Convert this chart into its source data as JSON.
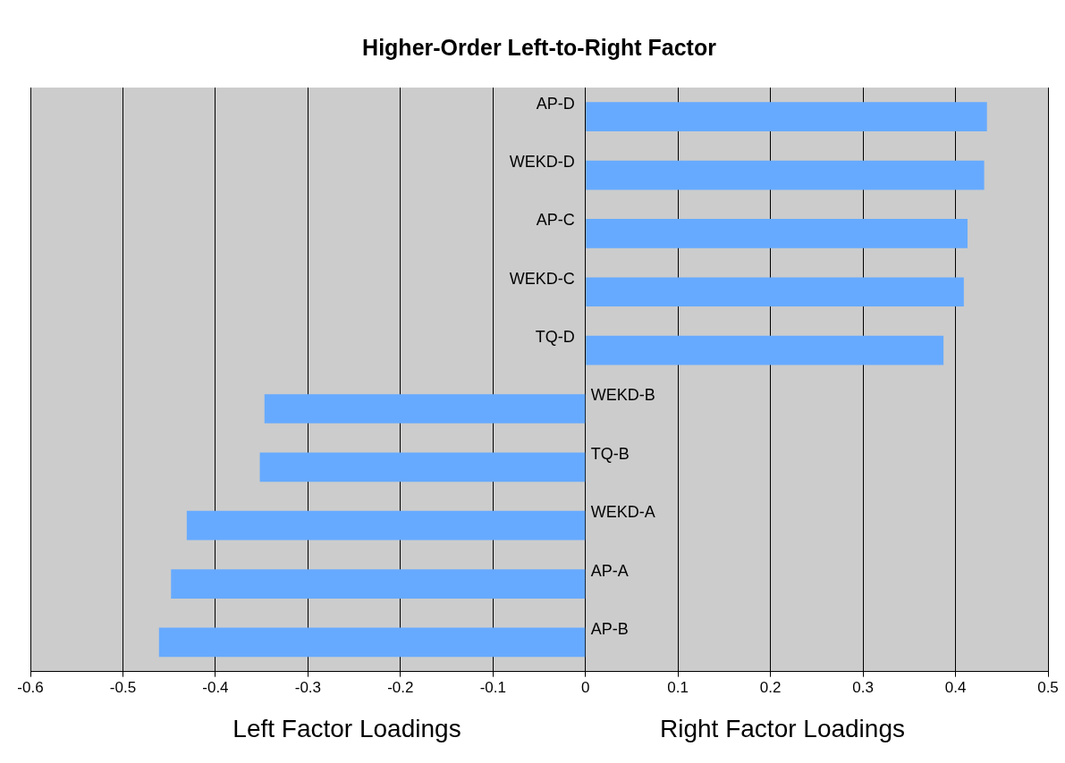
{
  "chart_data": {
    "type": "bar",
    "orientation": "horizontal",
    "title": "Higher-Order Left-to-Right Factor",
    "categories": [
      "AP-D",
      "WEKD-D",
      "AP-C",
      "WEKD-C",
      "TQ-D",
      "WEKD-B",
      "TQ-B",
      "WEKD-A",
      "AP-A",
      "AP-B"
    ],
    "values": [
      0.434,
      0.431,
      0.413,
      0.409,
      0.387,
      -0.347,
      -0.352,
      -0.431,
      -0.448,
      -0.461
    ],
    "color": "#66aaff",
    "xlim": [
      -0.6,
      0.5
    ],
    "xticks": [
      -0.6,
      -0.5,
      -0.4,
      -0.3,
      -0.2,
      -0.1,
      0,
      0.1,
      0.2,
      0.3,
      0.4,
      0.5
    ],
    "grid": "x",
    "legend": false,
    "annotations": [
      "Left Factor Loadings",
      "Right Factor Loadings"
    ]
  }
}
